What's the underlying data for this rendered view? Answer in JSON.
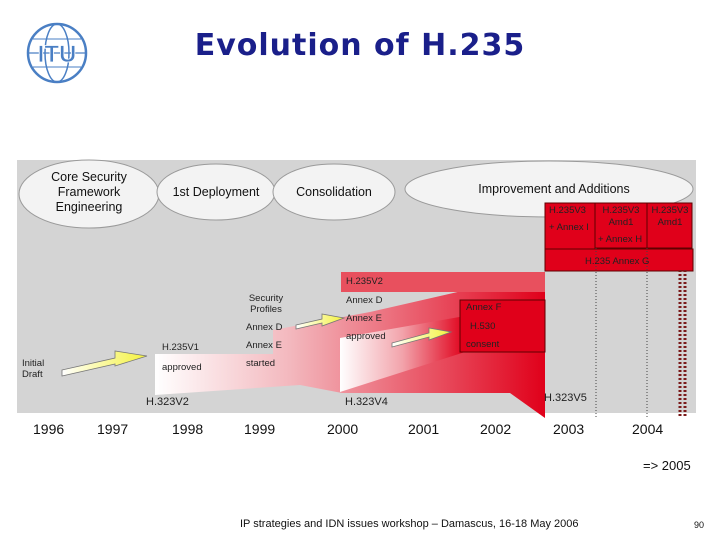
{
  "title": "Evolution of H.235",
  "logo": {
    "text": "ITU",
    "color": "#4a7fc4"
  },
  "colors": {
    "chart_bg": "#d4d4d4",
    "red": "#e0001a",
    "arrow_yellow": "#f4f23c",
    "ellipse": "#f3f3f3",
    "title": "#1a1f8a"
  },
  "phases": {
    "core": "Core Security Framework Engineering",
    "deployment": "1st Deployment",
    "consolidation": "Consolidation",
    "improvement": "Improvement and Additions"
  },
  "items": {
    "initial_draft": "Initial Draft",
    "h235v1": "H.235V1",
    "approved1": "approved",
    "security_profiles": "Security Profiles",
    "annex_d_1": "Annex D",
    "annex_e_1": "Annex E",
    "started": "started",
    "h235v2": "H.235V2",
    "annex_d_2": "Annex D",
    "annex_e_2": "Annex E",
    "approved2": "approved",
    "annex_f": "Annex F",
    "h530": "H.530",
    "consent": "consent",
    "h235v3": "H.235V3",
    "annex_i": "+ Annex I",
    "h235v3_amd1": "H.235V3 Amd1",
    "annex_h": "+ Annex H",
    "h235v3_amd1b": "H.235V3 Amd1",
    "annex_g": "H.235 Annex G"
  },
  "h323": {
    "v2": "H.323V2",
    "v4": "H.323V4",
    "v5": "H.323V5"
  },
  "years": [
    "1996",
    "1997",
    "1998",
    "1999",
    "2000",
    "2001",
    "2002",
    "2003",
    "2004"
  ],
  "later": "=> 2005",
  "footer": "IP strategies and IDN issues workshop – Damascus, 16-18 May 2006",
  "page_number": "90"
}
